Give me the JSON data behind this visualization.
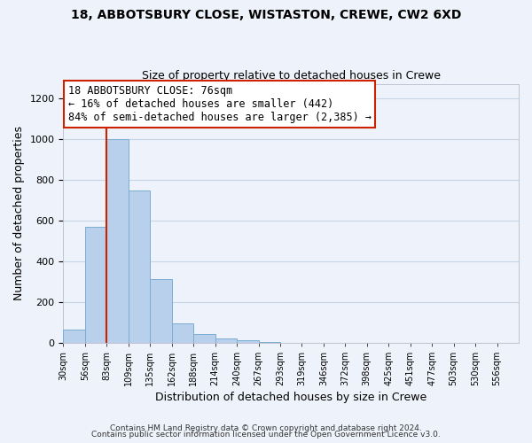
{
  "title": "18, ABBOTSBURY CLOSE, WISTASTON, CREWE, CW2 6XD",
  "subtitle": "Size of property relative to detached houses in Crewe",
  "xlabel": "Distribution of detached houses by size in Crewe",
  "ylabel": "Number of detached properties",
  "bar_values": [
    65,
    570,
    1000,
    745,
    310,
    95,
    40,
    20,
    10,
    5
  ],
  "bin_labels": [
    "30sqm",
    "56sqm",
    "83sqm",
    "109sqm",
    "135sqm",
    "162sqm",
    "188sqm",
    "214sqm",
    "240sqm",
    "267sqm",
    "293sqm",
    "319sqm",
    "346sqm",
    "372sqm",
    "398sqm",
    "425sqm",
    "451sqm",
    "477sqm",
    "503sqm",
    "530sqm",
    "556sqm"
  ],
  "bar_color": "#b8d0eb",
  "bar_edge_color": "#7aadd4",
  "marker_line_color": "#cc2200",
  "annotation_text": "18 ABBOTSBURY CLOSE: 76sqm\n← 16% of detached houses are smaller (442)\n84% of semi-detached houses are larger (2,385) →",
  "annotation_box_color": "#ffffff",
  "annotation_box_edge_color": "#cc2200",
  "ylim": [
    0,
    1270
  ],
  "yticks": [
    0,
    200,
    400,
    600,
    800,
    1000,
    1200
  ],
  "footer1": "Contains HM Land Registry data © Crown copyright and database right 2024.",
  "footer2": "Contains public sector information licensed under the Open Government Licence v3.0.",
  "background_color": "#eef2fa"
}
